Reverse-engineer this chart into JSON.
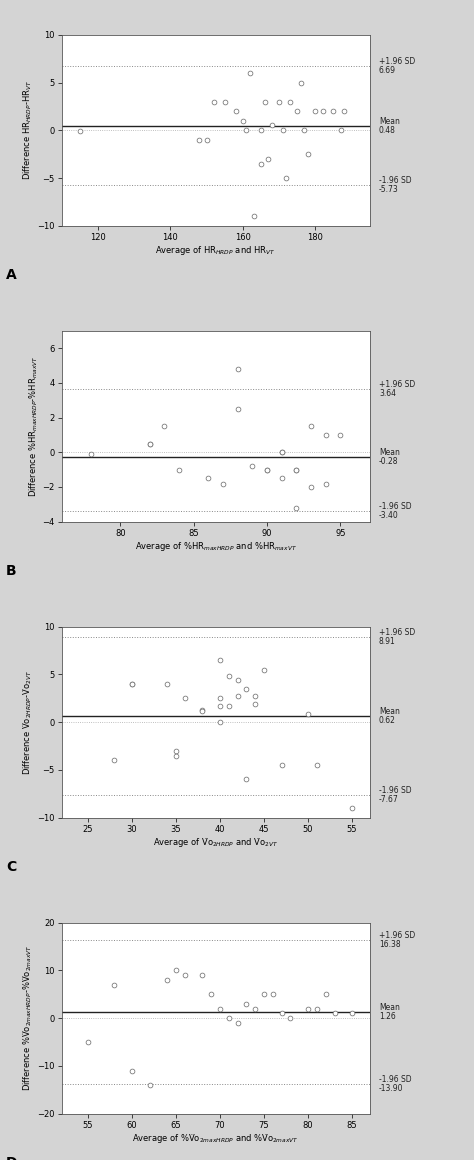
{
  "plots": [
    {
      "panel": "A",
      "xlabel": "Average of HR$_{HRDP}$ and HR$_{VT}$",
      "ylabel": "Difference HR$_{HRDP}$-HR$_{VT}$",
      "mean": 0.48,
      "upper_loa": 6.69,
      "lower_loa": -5.73,
      "upper_label_top": "+1.96 SD",
      "upper_label_bot": "6.69",
      "mean_label_top": "Mean",
      "mean_label_bot": "0.48",
      "lower_label_top": "-1.96 SD",
      "lower_label_bot": "-5.73",
      "xlim": [
        110,
        195
      ],
      "ylim": [
        -10,
        10
      ],
      "xticks": [
        120,
        140,
        160,
        180
      ],
      "yticks": [
        -10,
        -5,
        0,
        5,
        10
      ],
      "data_x": [
        115,
        148,
        150,
        152,
        155,
        158,
        160,
        161,
        162,
        163,
        165,
        165,
        166,
        167,
        168,
        170,
        171,
        172,
        173,
        175,
        176,
        177,
        178,
        180,
        182,
        185,
        187,
        188
      ],
      "data_y": [
        -0.1,
        -1.0,
        -1.0,
        3.0,
        3.0,
        2.0,
        1.0,
        0.0,
        6.0,
        -9.0,
        0.0,
        -3.5,
        3.0,
        -3.0,
        0.5,
        3.0,
        0.0,
        -5.0,
        3.0,
        2.0,
        5.0,
        0.0,
        -2.5,
        2.0,
        2.0,
        2.0,
        0.0,
        2.0
      ]
    },
    {
      "panel": "B",
      "xlabel": "Average of %HR$_{maxHRDP}$ and %HR$_{maxVT}$",
      "ylabel": "Difference %HR$_{maxHRDP}$-%HR$_{maxVT}$",
      "mean": -0.28,
      "upper_loa": 3.64,
      "lower_loa": -3.4,
      "upper_label_top": "+1.96 SD",
      "upper_label_bot": "3.64",
      "mean_label_top": "Mean",
      "mean_label_bot": "-0.28",
      "lower_label_top": "-1.96 SD",
      "lower_label_bot": "-3.40",
      "xlim": [
        76,
        97
      ],
      "ylim": [
        -4,
        7
      ],
      "xticks": [
        80,
        85,
        90,
        95
      ],
      "yticks": [
        -4,
        -2,
        0,
        2,
        4,
        6
      ],
      "data_x": [
        78,
        82,
        82,
        83,
        84,
        86,
        87,
        88,
        88,
        89,
        90,
        90,
        91,
        91,
        91,
        92,
        92,
        92,
        93,
        93,
        94,
        94,
        95
      ],
      "data_y": [
        -0.1,
        0.5,
        0.5,
        1.5,
        -1.0,
        -1.5,
        -1.8,
        4.8,
        2.5,
        -0.8,
        -1.0,
        -1.0,
        0.0,
        -1.5,
        0.0,
        -3.2,
        -1.0,
        -1.0,
        1.5,
        -2.0,
        1.0,
        -1.8,
        1.0
      ]
    },
    {
      "panel": "C",
      "xlabel": "Average of V̇o$_{2HRDP}$ and V̇o$_{2VT}$",
      "ylabel": "Difference V̇o$_{2HRDP}$-V̇o$_{2VT}$",
      "mean": 0.62,
      "upper_loa": 8.91,
      "lower_loa": -7.67,
      "upper_label_top": "+1.96 SD",
      "upper_label_bot": "8.91",
      "mean_label_top": "Mean",
      "mean_label_bot": "0.62",
      "lower_label_top": "-1.96 SD",
      "lower_label_bot": "-7.67",
      "xlim": [
        22,
        57
      ],
      "ylim": [
        -10,
        10
      ],
      "xticks": [
        25,
        30,
        35,
        40,
        45,
        50,
        55
      ],
      "yticks": [
        -10,
        -5,
        0,
        5,
        10
      ],
      "data_x": [
        28,
        30,
        30,
        34,
        35,
        36,
        38,
        40,
        40,
        40,
        41,
        41,
        42,
        43,
        43,
        44,
        44,
        45,
        47,
        50,
        51,
        55,
        35,
        38,
        40,
        42
      ],
      "data_y": [
        -4.0,
        4.0,
        4.0,
        4.0,
        -3.0,
        2.5,
        1.3,
        0.0,
        2.5,
        6.5,
        1.7,
        4.8,
        4.4,
        -6.0,
        3.5,
        1.9,
        2.7,
        5.5,
        -4.5,
        0.9,
        -4.5,
        -9.0,
        -3.5,
        1.2,
        1.7,
        2.7
      ]
    },
    {
      "panel": "D",
      "xlabel": "Average of %V̇o$_{2maxHRDP}$ and %V̇o$_{2maxVT}$",
      "ylabel": "Difference %V̇o$_{2maxHRDP}$-%V̇o$_{2maxVT}$",
      "mean": 1.26,
      "upper_loa": 16.38,
      "lower_loa": -13.9,
      "upper_label_top": "+1.96 SD",
      "upper_label_bot": "16.38",
      "mean_label_top": "Mean",
      "mean_label_bot": "1.26",
      "lower_label_top": "-1.96 SD",
      "lower_label_bot": "-13.90",
      "xlim": [
        52,
        87
      ],
      "ylim": [
        -20,
        20
      ],
      "xticks": [
        55,
        60,
        65,
        70,
        75,
        80,
        85
      ],
      "yticks": [
        -20,
        -10,
        0,
        10,
        20
      ],
      "data_x": [
        55,
        58,
        60,
        62,
        64,
        65,
        66,
        68,
        69,
        70,
        71,
        72,
        73,
        74,
        75,
        76,
        77,
        78,
        80,
        81,
        82,
        83,
        85
      ],
      "data_y": [
        -5.0,
        7.0,
        -11.0,
        -14.0,
        8.0,
        10.0,
        9.0,
        9.0,
        5.0,
        2.0,
        0.0,
        -1.0,
        3.0,
        2.0,
        5.0,
        5.0,
        1.0,
        0.0,
        2.0,
        2.0,
        5.0,
        1.0,
        1.0
      ]
    }
  ],
  "bg_color": "#d4d4d4",
  "plot_bg_color": "#ffffff",
  "dot_color": "#ffffff",
  "dot_edgecolor": "#666666",
  "mean_line_color": "#222222",
  "loa_line_color": "#888888",
  "zero_line_color": "#aaaaaa",
  "label_fontsize": 6.0,
  "tick_fontsize": 6.0,
  "panel_fontsize": 10,
  "annotation_fontsize": 5.5
}
